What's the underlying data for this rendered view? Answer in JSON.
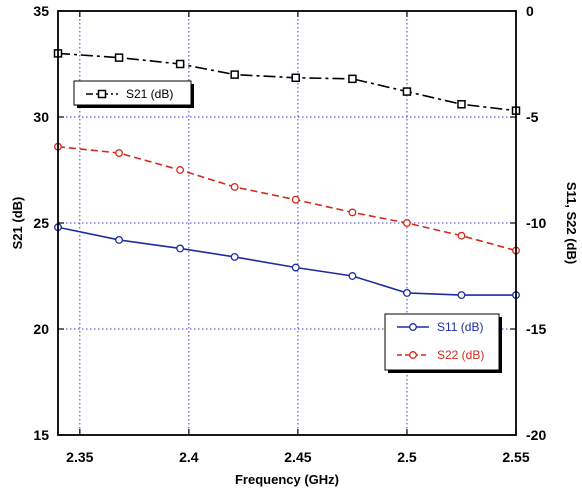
{
  "chart_data": {
    "type": "line",
    "x": [
      2.34,
      2.368,
      2.396,
      2.421,
      2.449,
      2.475,
      2.5,
      2.525,
      2.55
    ],
    "xlabel": "Frequency (GHz)",
    "ylabel_left": "S21 (dB)",
    "ylabel_right": "S11, S22 (dB)",
    "xlim": [
      2.34,
      2.55
    ],
    "ylim_left": [
      15,
      35
    ],
    "ylim_right": [
      -20,
      0
    ],
    "xticks": [
      "2.35",
      "2.4",
      "2.45",
      "2.5",
      "2.55"
    ],
    "yticks_left": [
      "15",
      "20",
      "25",
      "30",
      "35"
    ],
    "yticks_right": [
      "-20",
      "-15",
      "-10",
      "-5",
      "0"
    ],
    "grid": true,
    "series": [
      {
        "name": "S21 (dB)",
        "axis": "left",
        "color": "#000000",
        "style": "dashdot",
        "marker": "square",
        "values": [
          33.0,
          32.8,
          32.5,
          32.0,
          31.85,
          31.8,
          31.2,
          30.6,
          30.3
        ]
      },
      {
        "name": "S11 (dB)",
        "axis": "right",
        "color": "#1c2ea0",
        "style": "solid",
        "marker": "circle",
        "values": [
          -10.2,
          -10.8,
          -11.2,
          -11.6,
          -12.1,
          -12.5,
          -13.3,
          -13.4,
          -13.4
        ]
      },
      {
        "name": "S22 (dB)",
        "axis": "right",
        "color": "#d42a1e",
        "style": "dashed",
        "marker": "circle",
        "values": [
          -6.4,
          -6.7,
          -7.5,
          -8.3,
          -8.9,
          -9.5,
          -10.0,
          -10.6,
          -11.3
        ]
      }
    ],
    "legends": [
      {
        "position": "top-left",
        "entries": [
          "S21 (dB)"
        ]
      },
      {
        "position": "bottom-right",
        "entries": [
          "S11 (dB)",
          "S22 (dB)"
        ]
      }
    ]
  }
}
